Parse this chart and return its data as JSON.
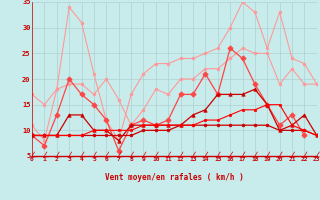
{
  "xlabel": "Vent moyen/en rafales ( km/h )",
  "bg_color": "#c8ecec",
  "grid_color": "#b0d0d0",
  "xmin": 0,
  "xmax": 23,
  "ymin": 5,
  "ymax": 35,
  "yticks": [
    5,
    10,
    15,
    20,
    25,
    30,
    35
  ],
  "xticks": [
    0,
    1,
    2,
    3,
    4,
    5,
    6,
    7,
    8,
    9,
    10,
    11,
    12,
    13,
    14,
    15,
    16,
    17,
    18,
    19,
    20,
    21,
    22,
    23
  ],
  "series": [
    {
      "color": "#ff9999",
      "linewidth": 0.8,
      "marker": "o",
      "markersize": 2.0,
      "data": [
        11,
        8,
        18,
        34,
        31,
        21,
        12,
        8,
        17,
        21,
        23,
        23,
        24,
        24,
        25,
        26,
        30,
        35,
        33,
        26,
        33,
        24,
        23,
        19
      ]
    },
    {
      "color": "#ff9999",
      "linewidth": 0.8,
      "marker": "o",
      "markersize": 2.0,
      "data": [
        17,
        15,
        18,
        19,
        19,
        17,
        20,
        16,
        11,
        14,
        18,
        17,
        20,
        20,
        22,
        22,
        24,
        26,
        25,
        25,
        19,
        22,
        19,
        19
      ]
    },
    {
      "color": "#ff4444",
      "linewidth": 0.9,
      "marker": "P",
      "markersize": 3.5,
      "data": [
        9,
        7,
        13,
        20,
        17,
        15,
        12,
        6,
        11,
        12,
        11,
        12,
        17,
        17,
        21,
        17,
        26,
        24,
        19,
        15,
        11,
        13,
        9,
        null
      ]
    },
    {
      "color": "#cc0000",
      "linewidth": 0.9,
      "marker": "^",
      "markersize": 2.5,
      "data": [
        9,
        9,
        9,
        13,
        13,
        10,
        10,
        8,
        11,
        11,
        11,
        11,
        11,
        13,
        14,
        17,
        17,
        17,
        18,
        15,
        10,
        11,
        13,
        9
      ]
    },
    {
      "color": "#cc0000",
      "linewidth": 0.9,
      "marker": "o",
      "markersize": 2.0,
      "data": [
        9,
        9,
        9,
        9,
        9,
        9,
        9,
        9,
        9,
        10,
        10,
        10,
        11,
        11,
        11,
        11,
        11,
        11,
        11,
        11,
        10,
        10,
        10,
        9
      ]
    },
    {
      "color": "#ff0000",
      "linewidth": 0.8,
      "marker": "o",
      "markersize": 1.8,
      "data": [
        9,
        9,
        9,
        9,
        9,
        10,
        10,
        10,
        10,
        11,
        11,
        11,
        11,
        11,
        12,
        12,
        13,
        14,
        14,
        15,
        15,
        11,
        10,
        9
      ]
    }
  ],
  "wind_color": "#cc0000",
  "arrow_color": "#cc0000"
}
